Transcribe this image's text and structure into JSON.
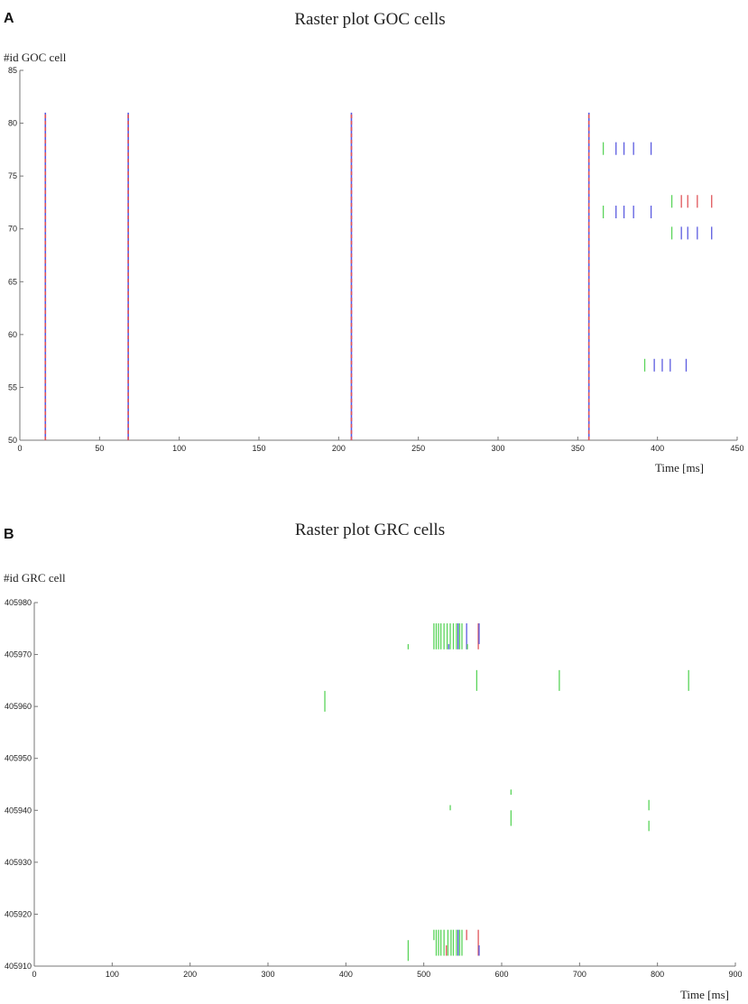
{
  "chart_data": [
    {
      "type": "scatter",
      "panel_label": "A",
      "title": "Raster plot GOC cells",
      "ylabel": "#id GOC cell",
      "xlabel": "Time [ms]",
      "xlim": [
        0,
        450
      ],
      "ylim": [
        50,
        85
      ],
      "xticks": [
        "0",
        "50",
        "100",
        "150",
        "200",
        "250",
        "300",
        "350",
        "400",
        "450"
      ],
      "yticks": [
        "50",
        "55",
        "60",
        "65",
        "70",
        "75",
        "80",
        "85"
      ],
      "colors": {
        "green": "#5ad45a",
        "blue": "#5b5be0",
        "red": "#e0555a"
      },
      "population_bursts": [
        16,
        68,
        208,
        357
      ],
      "burst_range": [
        50,
        81
      ],
      "spikes": [
        {
          "t": 366,
          "y0": 77,
          "y1": 78.2,
          "c": "green"
        },
        {
          "t": 374,
          "y0": 77,
          "y1": 78.2,
          "c": "blue"
        },
        {
          "t": 379,
          "y0": 77,
          "y1": 78.2,
          "c": "blue"
        },
        {
          "t": 385,
          "y0": 77,
          "y1": 78.2,
          "c": "blue"
        },
        {
          "t": 396,
          "y0": 77,
          "y1": 78.2,
          "c": "blue"
        },
        {
          "t": 366,
          "y0": 71,
          "y1": 72.2,
          "c": "green"
        },
        {
          "t": 374,
          "y0": 71,
          "y1": 72.2,
          "c": "blue"
        },
        {
          "t": 379,
          "y0": 71,
          "y1": 72.2,
          "c": "blue"
        },
        {
          "t": 385,
          "y0": 71,
          "y1": 72.2,
          "c": "blue"
        },
        {
          "t": 396,
          "y0": 71,
          "y1": 72.2,
          "c": "blue"
        },
        {
          "t": 409,
          "y0": 72,
          "y1": 73.2,
          "c": "green"
        },
        {
          "t": 415,
          "y0": 72,
          "y1": 73.2,
          "c": "red"
        },
        {
          "t": 419,
          "y0": 72,
          "y1": 73.2,
          "c": "red"
        },
        {
          "t": 425,
          "y0": 72,
          "y1": 73.2,
          "c": "red"
        },
        {
          "t": 434,
          "y0": 72,
          "y1": 73.2,
          "c": "red"
        },
        {
          "t": 409,
          "y0": 69,
          "y1": 70.2,
          "c": "green"
        },
        {
          "t": 415,
          "y0": 69,
          "y1": 70.2,
          "c": "blue"
        },
        {
          "t": 419,
          "y0": 69,
          "y1": 70.2,
          "c": "blue"
        },
        {
          "t": 425,
          "y0": 69,
          "y1": 70.2,
          "c": "blue"
        },
        {
          "t": 434,
          "y0": 69,
          "y1": 70.2,
          "c": "blue"
        },
        {
          "t": 392,
          "y0": 56.5,
          "y1": 57.7,
          "c": "green"
        },
        {
          "t": 398,
          "y0": 56.5,
          "y1": 57.7,
          "c": "blue"
        },
        {
          "t": 403,
          "y0": 56.5,
          "y1": 57.7,
          "c": "blue"
        },
        {
          "t": 408,
          "y0": 56.5,
          "y1": 57.7,
          "c": "blue"
        },
        {
          "t": 418,
          "y0": 56.5,
          "y1": 57.7,
          "c": "blue"
        }
      ]
    },
    {
      "type": "scatter",
      "panel_label": "B",
      "title": "Raster plot GRC cells",
      "ylabel": "#id GRC cell",
      "xlabel": "Time [ms]",
      "xlim": [
        0,
        900
      ],
      "ylim": [
        405910,
        405980
      ],
      "xticks": [
        "0",
        "100",
        "200",
        "300",
        "400",
        "500",
        "600",
        "700",
        "800",
        "900"
      ],
      "yticks": [
        "405910",
        "405920",
        "405930",
        "405940",
        "405950",
        "405960",
        "405970",
        "405980"
      ],
      "colors": {
        "green": "#5ad45a",
        "blue": "#5b5be0",
        "red": "#e0555a"
      },
      "spikes": [
        {
          "t": 513,
          "y0": 405971,
          "y1": 405976,
          "c": "green"
        },
        {
          "t": 516,
          "y0": 405971,
          "y1": 405976,
          "c": "green"
        },
        {
          "t": 519,
          "y0": 405971,
          "y1": 405976,
          "c": "green"
        },
        {
          "t": 522,
          "y0": 405971,
          "y1": 405976,
          "c": "green"
        },
        {
          "t": 526,
          "y0": 405971,
          "y1": 405976,
          "c": "green"
        },
        {
          "t": 530,
          "y0": 405971,
          "y1": 405976,
          "c": "green"
        },
        {
          "t": 534,
          "y0": 405971,
          "y1": 405976,
          "c": "green"
        },
        {
          "t": 538,
          "y0": 405971,
          "y1": 405976,
          "c": "green"
        },
        {
          "t": 542,
          "y0": 405971,
          "y1": 405976,
          "c": "green"
        },
        {
          "t": 544,
          "y0": 405971,
          "y1": 405976,
          "c": "blue"
        },
        {
          "t": 546,
          "y0": 405971,
          "y1": 405976,
          "c": "green"
        },
        {
          "t": 549,
          "y0": 405971,
          "y1": 405976,
          "c": "green"
        },
        {
          "t": 555,
          "y0": 405971,
          "y1": 405976,
          "c": "blue"
        },
        {
          "t": 570,
          "y0": 405971,
          "y1": 405976,
          "c": "red"
        },
        {
          "t": 571,
          "y0": 405972,
          "y1": 405976,
          "c": "blue"
        },
        {
          "t": 480,
          "y0": 405971,
          "y1": 405972,
          "c": "green"
        },
        {
          "t": 532,
          "y0": 405971,
          "y1": 405972,
          "c": "blue"
        },
        {
          "t": 556,
          "y0": 405971,
          "y1": 405972,
          "c": "green"
        },
        {
          "t": 568,
          "y0": 405963,
          "y1": 405967,
          "c": "green"
        },
        {
          "t": 674,
          "y0": 405963,
          "y1": 405967,
          "c": "green"
        },
        {
          "t": 840,
          "y0": 405963,
          "y1": 405967,
          "c": "green"
        },
        {
          "t": 373,
          "y0": 405959,
          "y1": 405963,
          "c": "green"
        },
        {
          "t": 612,
          "y0": 405943,
          "y1": 405944,
          "c": "green"
        },
        {
          "t": 534,
          "y0": 405940,
          "y1": 405941,
          "c": "green"
        },
        {
          "t": 612,
          "y0": 405937,
          "y1": 405940,
          "c": "green"
        },
        {
          "t": 789,
          "y0": 405940,
          "y1": 405942,
          "c": "green"
        },
        {
          "t": 789,
          "y0": 405936,
          "y1": 405938,
          "c": "green"
        },
        {
          "t": 480,
          "y0": 405911,
          "y1": 405915,
          "c": "green"
        },
        {
          "t": 513,
          "y0": 405915,
          "y1": 405917,
          "c": "green"
        },
        {
          "t": 516,
          "y0": 405912,
          "y1": 405917,
          "c": "green"
        },
        {
          "t": 519,
          "y0": 405912,
          "y1": 405917,
          "c": "green"
        },
        {
          "t": 522,
          "y0": 405912,
          "y1": 405917,
          "c": "green"
        },
        {
          "t": 526,
          "y0": 405912,
          "y1": 405917,
          "c": "green"
        },
        {
          "t": 529,
          "y0": 405912,
          "y1": 405914,
          "c": "red"
        },
        {
          "t": 531,
          "y0": 405912,
          "y1": 405917,
          "c": "green"
        },
        {
          "t": 535,
          "y0": 405912,
          "y1": 405917,
          "c": "green"
        },
        {
          "t": 538,
          "y0": 405912,
          "y1": 405917,
          "c": "green"
        },
        {
          "t": 542,
          "y0": 405912,
          "y1": 405917,
          "c": "green"
        },
        {
          "t": 544,
          "y0": 405912,
          "y1": 405917,
          "c": "blue"
        },
        {
          "t": 546,
          "y0": 405912,
          "y1": 405917,
          "c": "green"
        },
        {
          "t": 549,
          "y0": 405912,
          "y1": 405917,
          "c": "green"
        },
        {
          "t": 555,
          "y0": 405915,
          "y1": 405917,
          "c": "red"
        },
        {
          "t": 570,
          "y0": 405912,
          "y1": 405917,
          "c": "red"
        },
        {
          "t": 571,
          "y0": 405912,
          "y1": 405914,
          "c": "blue"
        }
      ]
    }
  ]
}
